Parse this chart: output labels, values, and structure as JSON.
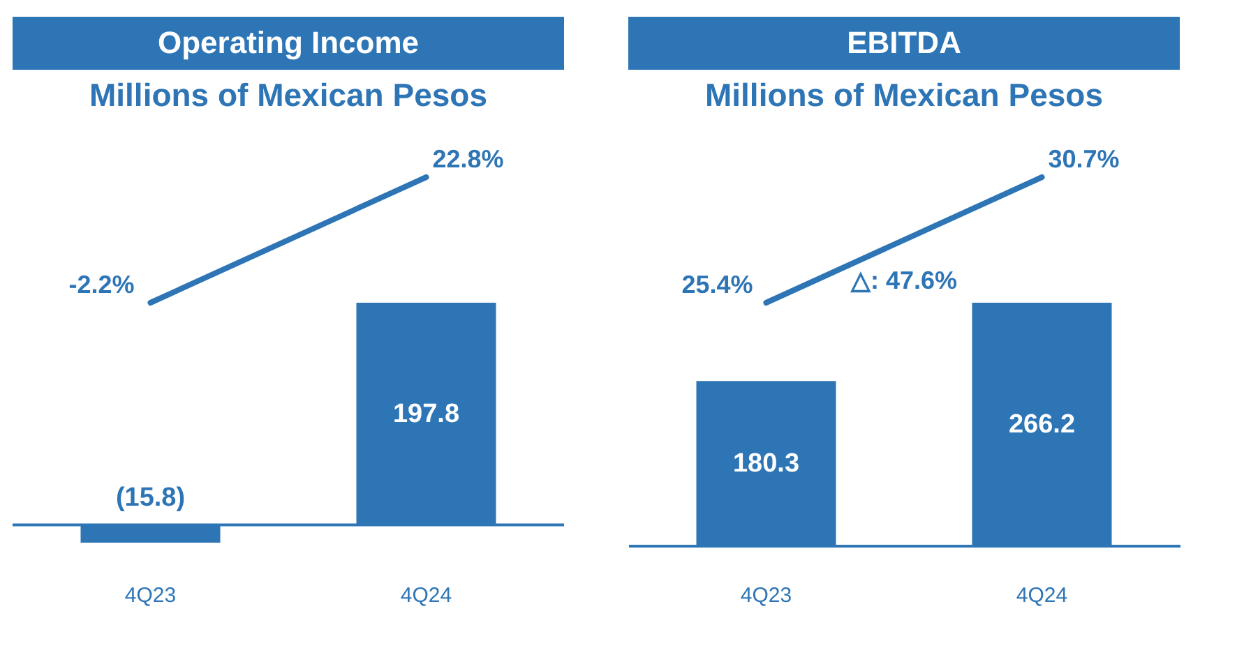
{
  "chart_data": [
    {
      "type": "bar",
      "title": "Operating Income",
      "subtitle": "Millions of Mexican Pesos",
      "categories": [
        "4Q23",
        "4Q24"
      ],
      "tick_labels": "x",
      "ref_lines": [
        {
          "axis": "y",
          "value": 0
        }
      ],
      "series": [
        {
          "color": "#2e75b6",
          "values": [
            -15.8,
            197.8
          ],
          "value_labels": [
            "(15.8)",
            "197.8"
          ]
        },
        {
          "type": "line",
          "axis": "y2",
          "color": "#2e75b6",
          "values": [
            -2.2,
            22.8
          ],
          "value_labels": [
            "-2.2%",
            "22.8%"
          ]
        }
      ]
    },
    {
      "type": "bar",
      "title": "EBITDA",
      "subtitle": "Millions of Mexican Pesos",
      "categories": [
        "4Q23",
        "4Q24"
      ],
      "tick_labels": "x",
      "annotations": [
        "△: 47.6%"
      ],
      "series": [
        {
          "color": "#2e75b6",
          "values": [
            180.3,
            266.2
          ],
          "value_labels": [
            "180.3",
            "266.2"
          ]
        },
        {
          "type": "line",
          "axis": "y2",
          "color": "#2e75b6",
          "values": [
            25.4,
            30.7
          ],
          "value_labels": [
            "25.4%",
            "30.7%"
          ]
        }
      ]
    }
  ]
}
